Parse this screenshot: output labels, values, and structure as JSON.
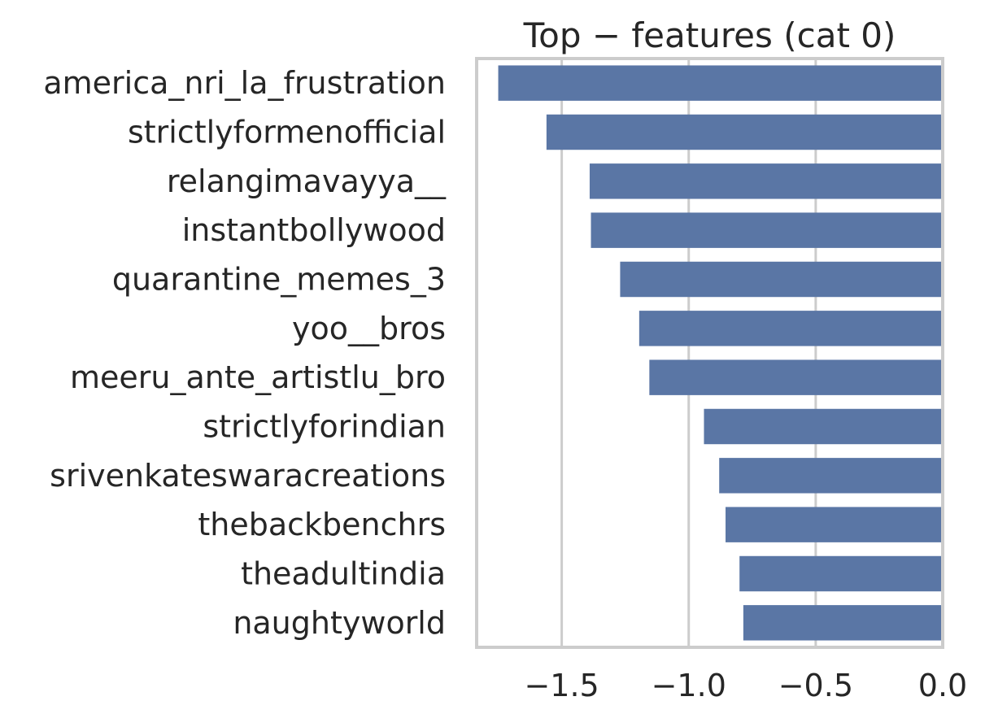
{
  "chart_data": {
    "type": "bar",
    "orientation": "horizontal",
    "title": "Top − features (cat 0)",
    "xlabel": "",
    "ylabel": "",
    "categories": [
      "america_nri_la_frustration",
      "strictlyformenofficial",
      "relangimavayya__",
      "instantbollywood",
      "quarantine_memes_3",
      "yoo__bros",
      "meeru_ante_artistlu_bro",
      "strictlyforindian",
      "srivenkateswaracreations",
      "thebackbenchrs",
      "theadultindia",
      "naughtyworld"
    ],
    "values": [
      -1.75,
      -1.56,
      -1.39,
      -1.385,
      -1.27,
      -1.195,
      -1.155,
      -0.94,
      -0.88,
      -0.855,
      -0.8,
      -0.785
    ],
    "xlim": [
      -1.835,
      0.0
    ],
    "xticks": [
      -1.5,
      -1.0,
      -0.5,
      0.0
    ],
    "xtick_labels": [
      "−1.5",
      "−1.0",
      "−0.5",
      "0.0"
    ],
    "grid": true,
    "colors": {
      "bar": "#5a76a5",
      "grid": "#cccccc",
      "frame": "#cccccc",
      "text": "#262626"
    }
  }
}
